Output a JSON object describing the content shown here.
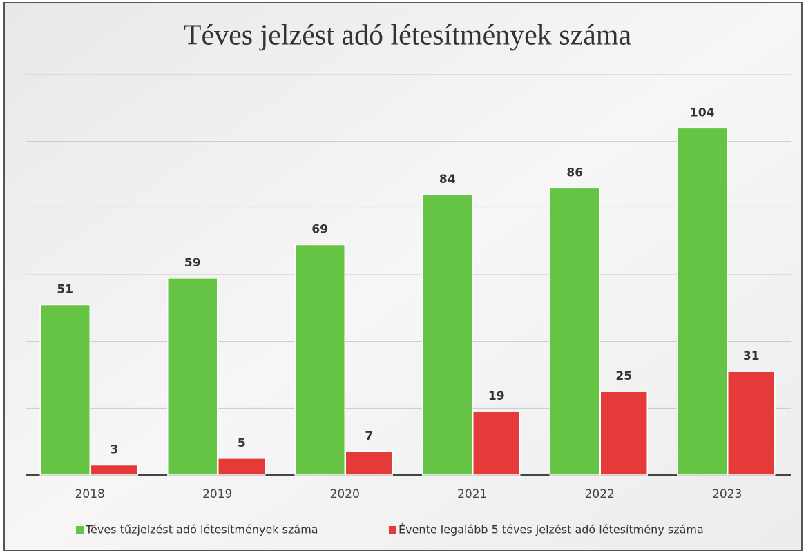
{
  "chart_data": {
    "type": "bar",
    "title": "Téves jelzést adó létesítmények száma",
    "categories": [
      "2018",
      "2019",
      "2020",
      "2021",
      "2022",
      "2023"
    ],
    "series": [
      {
        "name": "Téves tűzjelzést adó létesítmények száma",
        "color": "#66c444",
        "values": [
          51,
          59,
          69,
          84,
          86,
          104
        ]
      },
      {
        "name": "Évente legalább 5 téves jelzést adó létesítmény száma",
        "color": "#e53a3a",
        "values": [
          3,
          5,
          7,
          19,
          25,
          31
        ]
      }
    ],
    "ylim": [
      0,
      120
    ],
    "yticks": [
      0,
      20,
      40,
      60,
      80,
      100,
      120
    ],
    "grid": true
  }
}
